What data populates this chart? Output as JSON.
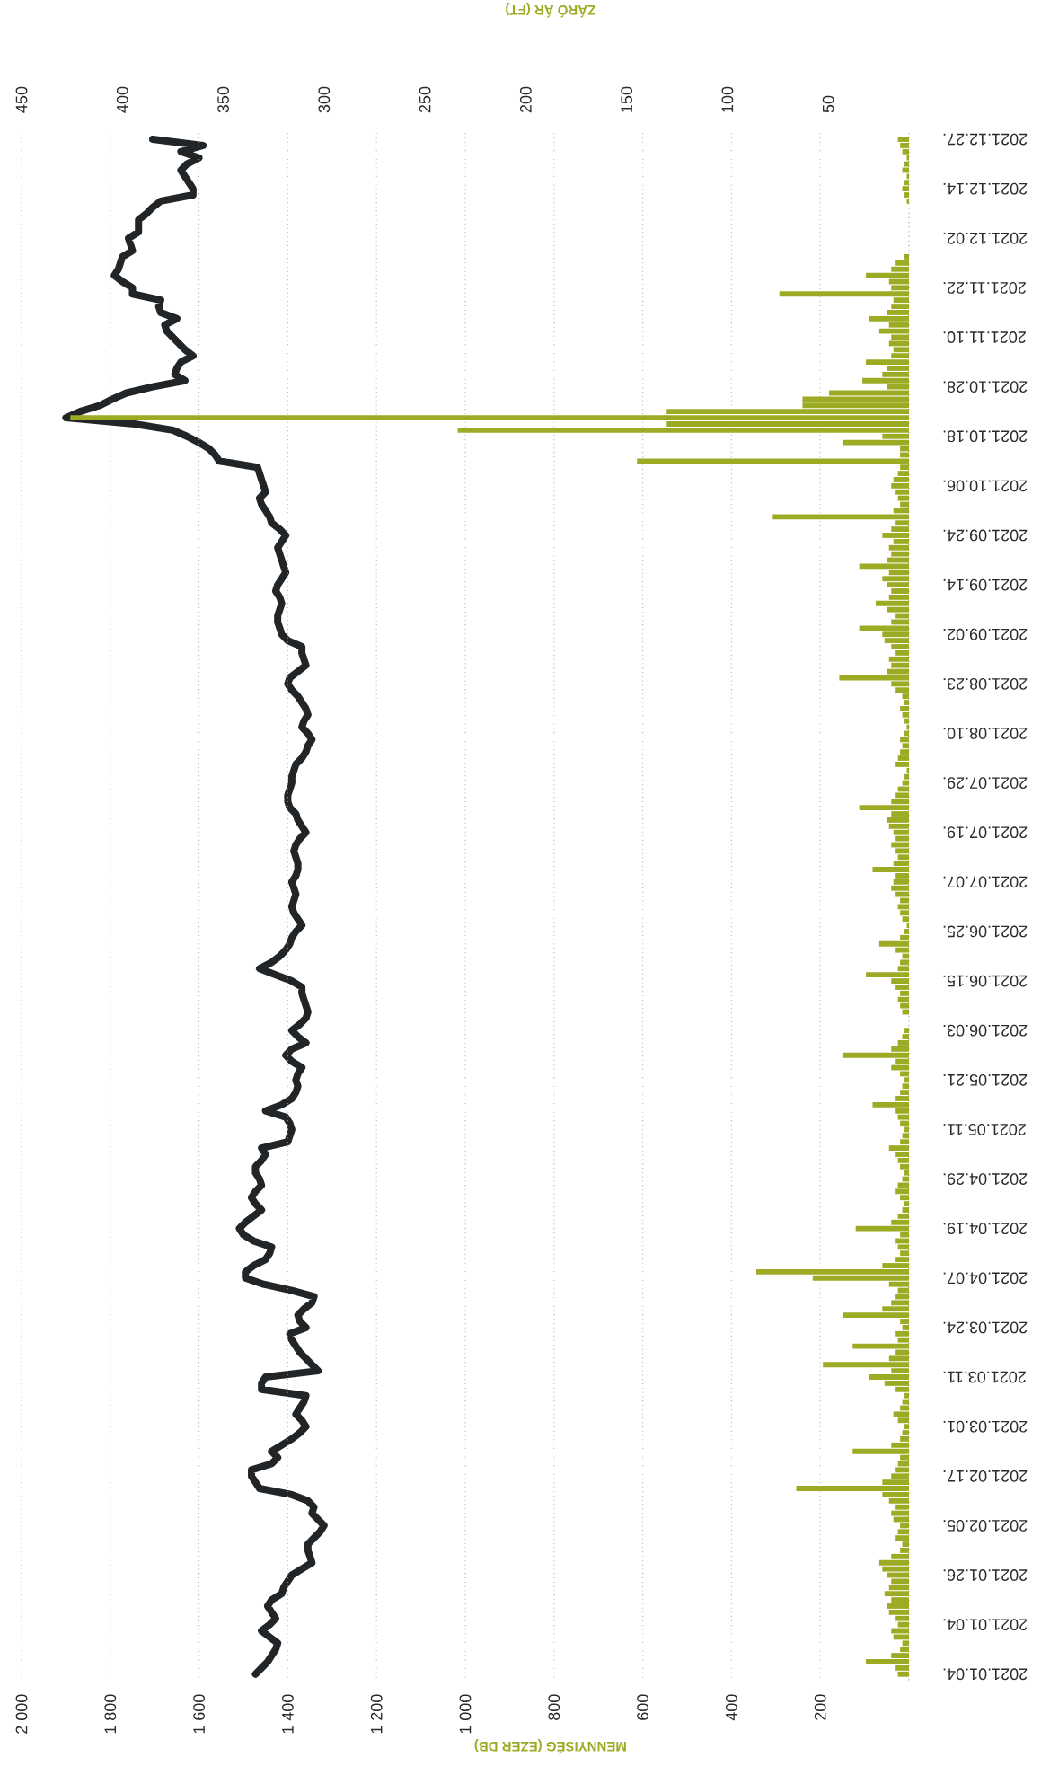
{
  "chart_data": {
    "type": "bar",
    "orientation": "horizontal",
    "categories": [
      "2021.12.27.",
      null,
      null,
      null,
      null,
      null,
      null,
      null,
      "2021.12.14.",
      null,
      null,
      null,
      null,
      null,
      null,
      null,
      "2021.12.02.",
      null,
      null,
      null,
      null,
      null,
      null,
      null,
      "2021.11.22.",
      null,
      null,
      null,
      null,
      null,
      null,
      null,
      "2021.11.10.",
      null,
      null,
      null,
      null,
      null,
      null,
      null,
      "2021.10.28.",
      null,
      null,
      null,
      null,
      null,
      null,
      null,
      "2021.10.18.",
      null,
      null,
      null,
      null,
      null,
      null,
      null,
      "2021.10.06.",
      null,
      null,
      null,
      null,
      null,
      null,
      null,
      "2021.09.24.",
      null,
      null,
      null,
      null,
      null,
      null,
      null,
      "2021.09.14.",
      null,
      null,
      null,
      null,
      null,
      null,
      null,
      "2021.09.02.",
      null,
      null,
      null,
      null,
      null,
      null,
      null,
      "2021.08.23.",
      null,
      null,
      null,
      null,
      null,
      null,
      null,
      "2021.08.10.",
      null,
      null,
      null,
      null,
      null,
      null,
      null,
      "2021.07.29.",
      null,
      null,
      null,
      null,
      null,
      null,
      null,
      "2021.07.19.",
      null,
      null,
      null,
      null,
      null,
      null,
      null,
      "2021.07.07.",
      null,
      null,
      null,
      null,
      null,
      null,
      null,
      "2021.06.25.",
      null,
      null,
      null,
      null,
      null,
      null,
      null,
      "2021.06.15.",
      null,
      null,
      null,
      null,
      null,
      null,
      null,
      "2021.06.03.",
      null,
      null,
      null,
      null,
      null,
      null,
      null,
      "2021.05.21.",
      null,
      null,
      null,
      null,
      null,
      null,
      null,
      "2021.05.11.",
      null,
      null,
      null,
      null,
      null,
      null,
      null,
      "2021.04.29.",
      null,
      null,
      null,
      null,
      null,
      null,
      null,
      "2021.04.19.",
      null,
      null,
      null,
      null,
      null,
      null,
      null,
      "2021.04.07.",
      null,
      null,
      null,
      null,
      null,
      null,
      null,
      "2021.03.24.",
      null,
      null,
      null,
      null,
      null,
      null,
      null,
      "2021.03.11.",
      null,
      null,
      null,
      null,
      null,
      null,
      null,
      "2021.03.01.",
      null,
      null,
      null,
      null,
      null,
      null,
      null,
      "2021.02.17.",
      null,
      null,
      null,
      null,
      null,
      null,
      null,
      "2021.02.05.",
      null,
      null,
      null,
      null,
      null,
      null,
      null,
      "2021.01.26.",
      null,
      null,
      null,
      null,
      null,
      null,
      null,
      "2021.01.04.",
      null,
      null,
      null,
      null,
      null,
      null,
      null,
      "2021.01.04."
    ],
    "xlabel": "MENNYISÉG (EZER DB)",
    "x2label": "ZÁRÓ ÁR (FT)",
    "xlim": [
      2000,
      0
    ],
    "xticks": [
      200,
      400,
      600,
      800,
      {
        "value": 1000,
        "label": "1 000"
      },
      {
        "value": 1200,
        "label": "1 200"
      },
      {
        "value": 1400,
        "label": "1 400"
      },
      {
        "value": 1600,
        "label": "1 600"
      },
      {
        "value": 1800,
        "label": "1 800"
      },
      {
        "value": 2000,
        "label": "2 000"
      }
    ],
    "x2lim": [
      450,
      10
    ],
    "x2ticks": [
      50,
      100,
      150,
      200,
      250,
      300,
      350,
      400,
      450
    ],
    "grid": "x",
    "series": [
      {
        "color": "#9cab23",
        "values": [
          25,
          20,
          15,
          5,
          10,
          15,
          5,
          10,
          15,
          10,
          5,
          0,
          0,
          0,
          0,
          0,
          0,
          0,
          0,
          10,
          30,
          40,
          97,
          45,
          40,
          292,
          35,
          40,
          50,
          90,
          45,
          67,
          40,
          45,
          35,
          40,
          97,
          50,
          60,
          105,
          50,
          180,
          240,
          240,
          546,
          1890,
          546,
          1017,
          60,
          150,
          20,
          20,
          613,
          20,
          25,
          35,
          40,
          30,
          25,
          20,
          35,
          307,
          30,
          40,
          60,
          35,
          45,
          40,
          50,
          112,
          45,
          60,
          50,
          40,
          45,
          75,
          50,
          30,
          40,
          112,
          60,
          55,
          40,
          30,
          45,
          40,
          50,
          157,
          40,
          30,
          15,
          10,
          20,
          15,
          10,
          5,
          10,
          20,
          15,
          20,
          25,
          30,
          5,
          10,
          15,
          25,
          30,
          40,
          112,
          40,
          50,
          45,
          35,
          30,
          40,
          30,
          25,
          35,
          82,
          30,
          35,
          40,
          30,
          20,
          25,
          20,
          15,
          5,
          10,
          20,
          67,
          30,
          15,
          20,
          25,
          97,
          40,
          30,
          20,
          25,
          20,
          15,
          0,
          0,
          10,
          15,
          25,
          40,
          150,
          30,
          40,
          20,
          10,
          15,
          20,
          30,
          82,
          30,
          25,
          20,
          10,
          15,
          20,
          45,
          30,
          25,
          20,
          10,
          15,
          25,
          30,
          20,
          10,
          15,
          25,
          40,
          120,
          20,
          30,
          25,
          20,
          30,
          60,
          344,
          217,
          45,
          25,
          30,
          40,
          60,
          150,
          20,
          15,
          30,
          25,
          127,
          30,
          45,
          194,
          40,
          90,
          55,
          30,
          10,
          15,
          20,
          35,
          25,
          10,
          15,
          20,
          40,
          127,
          20,
          25,
          30,
          40,
          60,
          254,
          60,
          45,
          30,
          40,
          35,
          20,
          25,
          30,
          15,
          20,
          40,
          67,
          60,
          50,
          40,
          45,
          55,
          40,
          50,
          45,
          30,
          25,
          40,
          35,
          15,
          20,
          40,
          97,
          30,
          25
        ]
      },
      {
        "type": "line",
        "axis": "x2",
        "color": "#222528",
        "values": [
          385,
          360,
          371,
          362,
          368,
          371,
          369,
          367,
          365,
          365,
          381,
          385,
          388,
          392,
          392,
          392,
          397,
          396,
          395,
          400,
          401,
          402,
          404,
          400,
          395,
          395,
          381,
          382,
          381,
          373,
          379,
          378,
          375,
          372,
          369,
          365,
          371,
          373,
          374,
          369,
          385,
          398,
          405,
          411,
          421,
          428,
          394,
          375,
          368,
          362,
          357,
          354,
          352,
          333,
          332,
          331,
          330,
          329,
          332,
          331,
          329,
          327,
          326,
          322,
          319,
          321,
          323,
          322,
          321,
          320,
          319,
          321,
          323,
          324,
          322,
          321,
          322,
          323,
          323,
          322,
          321,
          318,
          311,
          311,
          310,
          309,
          313,
          317,
          318,
          316,
          313,
          311,
          309,
          308,
          310,
          311,
          308,
          306,
          308,
          309,
          311,
          314,
          315,
          316,
          316,
          317,
          318,
          318,
          317,
          314,
          313,
          311,
          309,
          312,
          314,
          315,
          314,
          313,
          313,
          314,
          316,
          315,
          314,
          315,
          316,
          315,
          313,
          311,
          314,
          316,
          317,
          319,
          322,
          326,
          332,
          324,
          316,
          311,
          311,
          310,
          309,
          308,
          309,
          312,
          316,
          313,
          309,
          316,
          319,
          316,
          311,
          313,
          314,
          313,
          314,
          316,
          321,
          329,
          319,
          317,
          316,
          317,
          318,
          331,
          329,
          331,
          334,
          334,
          332,
          331,
          334,
          336,
          334,
          331,
          335,
          339,
          342,
          340,
          335,
          326,
          327,
          329,
          335,
          339,
          339,
          330,
          316,
          305,
          306,
          310,
          313,
          312,
          309,
          317,
          316,
          314,
          312,
          309,
          306,
          303,
          329,
          331,
          331,
          309,
          310,
          312,
          314,
          311,
          309,
          312,
          316,
          321,
          326,
          323,
          326,
          336,
          336,
          334,
          332,
          316,
          308,
          305,
          306,
          303,
          300,
          302,
          305,
          308,
          308,
          307,
          306,
          311,
          316,
          318,
          320,
          321,
          326,
          328,
          326,
          324,
          327,
          331,
          327,
          323,
          324,
          326,
          328,
          331,
          334
        ]
      }
    ]
  }
}
